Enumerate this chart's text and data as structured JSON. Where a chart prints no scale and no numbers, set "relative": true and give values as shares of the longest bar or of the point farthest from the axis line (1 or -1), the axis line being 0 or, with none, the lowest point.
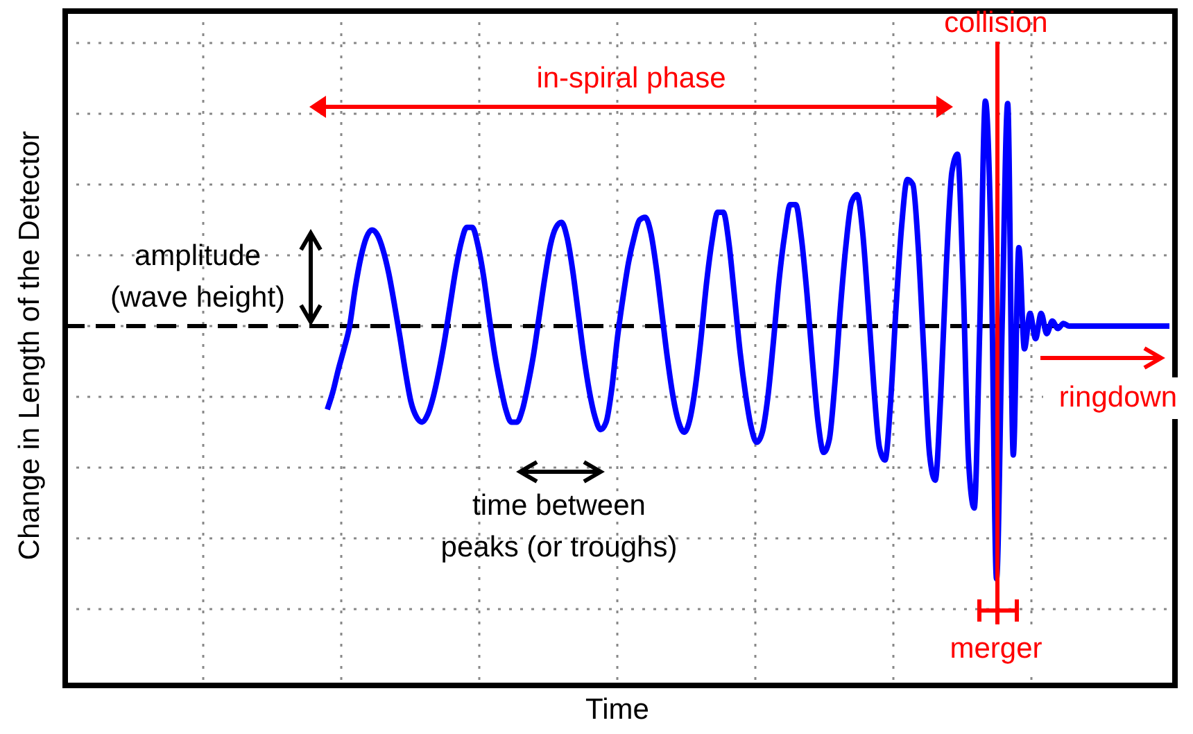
{
  "chart_data": {
    "type": "line",
    "relative": true,
    "xlabel": "Time",
    "ylabel": "Change in Length of the Detector",
    "grid": true,
    "categories": [
      null,
      null,
      null,
      null,
      null,
      null,
      null,
      null,
      null,
      null,
      null,
      null,
      null,
      null,
      null,
      null,
      null,
      null,
      null,
      null,
      null,
      null,
      null,
      null,
      null,
      null,
      null,
      null,
      null,
      null,
      null,
      null,
      null,
      null,
      null,
      null,
      null,
      null,
      null,
      null,
      null,
      null,
      null,
      null,
      null,
      null,
      null,
      null,
      null,
      null,
      null,
      null,
      null,
      null,
      null,
      null,
      null,
      null,
      null,
      null,
      null,
      null,
      null,
      null,
      null,
      null,
      null,
      null,
      null,
      null,
      null,
      null,
      null,
      null,
      null,
      null,
      null,
      null,
      null,
      null,
      null,
      null,
      null,
      null,
      null,
      null,
      null,
      null,
      null,
      null,
      null,
      null,
      null,
      null,
      null,
      null,
      null,
      null,
      null,
      null,
      null,
      null,
      null,
      null,
      null,
      null,
      null,
      null,
      null,
      null,
      null,
      null,
      null,
      null,
      null,
      null,
      null,
      null,
      null,
      null,
      null,
      null,
      null,
      null,
      null,
      null,
      null,
      null,
      null,
      null,
      null,
      null,
      null,
      null,
      null,
      null,
      null,
      null,
      null,
      null,
      null,
      null,
      null,
      null,
      null,
      null,
      null,
      null,
      null,
      null,
      null,
      null,
      null,
      null,
      null,
      null,
      null,
      null,
      null,
      null,
      null,
      null,
      null,
      null,
      null,
      null,
      null,
      null,
      null,
      null,
      null,
      null,
      null,
      null,
      null,
      null,
      null,
      null,
      null,
      null,
      null,
      null,
      null,
      null,
      null,
      null,
      null,
      null,
      null,
      null,
      null,
      null,
      null,
      null,
      null,
      null,
      null,
      null,
      null
    ],
    "series": [
      {
        "color": "#0000ff",
        "values": [
          null,
          null,
          null,
          null,
          null,
          null,
          null,
          null,
          null,
          null,
          null,
          null,
          null,
          null,
          null,
          null,
          null,
          null,
          null,
          null,
          null,
          null,
          null,
          null,
          null,
          null,
          null,
          null,
          null,
          null,
          null,
          null,
          null,
          null,
          null,
          null,
          null,
          null,
          null,
          null,
          null,
          null,
          null,
          null,
          null,
          null,
          null,
          -0.33,
          -0.26,
          -0.17,
          -0.09,
          0,
          0.15,
          0.27,
          0.35,
          0.38,
          0.36,
          0.3,
          0.21,
          0.09,
          -0.04,
          -0.18,
          -0.3,
          -0.36,
          -0.38,
          -0.35,
          -0.28,
          -0.18,
          -0.06,
          0.08,
          0.22,
          0.33,
          0.39,
          0.39,
          0.32,
          0.2,
          0.04,
          -0.11,
          -0.23,
          -0.33,
          -0.38,
          -0.38,
          -0.33,
          -0.23,
          -0.11,
          0.04,
          0.19,
          0.32,
          0.39,
          0.41,
          0.35,
          0.22,
          0.05,
          -0.12,
          -0.26,
          -0.36,
          -0.41,
          -0.38,
          -0.25,
          -0.05,
          0.11,
          0.25,
          0.35,
          0.42,
          0.43,
          0.37,
          0.23,
          0.05,
          -0.13,
          -0.28,
          -0.38,
          -0.42,
          -0.37,
          -0.24,
          -0.05,
          0.17,
          0.34,
          0.45,
          0.45,
          0.33,
          0.12,
          -0.1,
          -0.27,
          -0.4,
          -0.46,
          -0.42,
          -0.28,
          -0.06,
          0.18,
          0.36,
          0.48,
          0.48,
          0.35,
          0.13,
          -0.14,
          -0.38,
          -0.5,
          -0.45,
          -0.23,
          0.07,
          0.32,
          0.49,
          0.52,
          0.37,
          0.08,
          -0.24,
          -0.48,
          -0.53,
          -0.3,
          0.08,
          0.4,
          0.58,
          0.56,
          0.3,
          -0.12,
          -0.51,
          -0.61,
          -0.27,
          0.24,
          0.61,
          0.68,
          0.18,
          -0.54,
          -0.72,
          0,
          0.89,
          0.34,
          -1,
          0,
          0.88,
          -0.51,
          0.31,
          -0.09,
          0.05,
          -0.05,
          0.05,
          -0.03,
          0.02,
          -0.01,
          0.01,
          0,
          0,
          0,
          0,
          0,
          0,
          0,
          0,
          0,
          0,
          0,
          0,
          0,
          0,
          0,
          0,
          0,
          0,
          0
        ]
      }
    ],
    "ref_lines": [
      {
        "axis": "y",
        "value": 0,
        "color": "#000000",
        "line_style": "dashed"
      }
    ],
    "annotations": [
      "in-spiral phase",
      "collision",
      "merger",
      "ringdown",
      "amplitude\n(wave height)",
      "time between\npeaks (or troughs)"
    ]
  }
}
